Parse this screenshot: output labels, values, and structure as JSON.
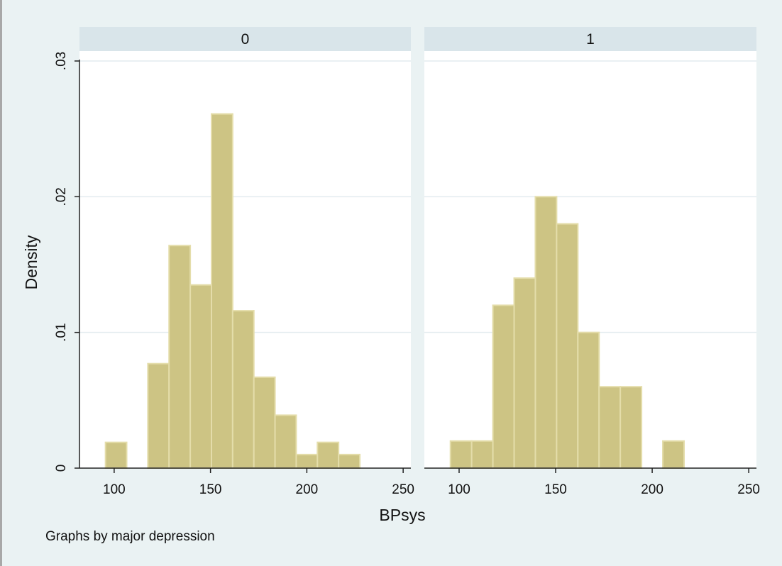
{
  "chart_data": {
    "type": "bar",
    "subtype": "histogram",
    "by_note": "Graphs by major depression",
    "xlabel": "BPsys",
    "ylabel": "Density",
    "x_ticks": [
      100,
      150,
      200,
      250
    ],
    "x_tick_labels": [
      "100",
      "150",
      "200",
      "250"
    ],
    "y_ticks": [
      0,
      0.01,
      0.02,
      0.03
    ],
    "y_tick_labels": [
      "0",
      ".01",
      ".02",
      ".03"
    ],
    "xlim": [
      82,
      254
    ],
    "ylim": [
      0,
      0.03
    ],
    "grid": true,
    "colors": {
      "background": "#eaf2f3",
      "plot_area": "#ffffff",
      "strip": "#d9e5ea",
      "bar_fill": "#cdc484",
      "bar_edge": "#e4ddaa",
      "gridline": "#e3ecef",
      "axis": "#222222"
    },
    "panels": [
      {
        "label": "0",
        "bins": [
          {
            "x0": 95.5,
            "x1": 106.5,
            "density": 0.0019
          },
          {
            "x0": 117.5,
            "x1": 128.5,
            "density": 0.0077
          },
          {
            "x0": 128.5,
            "x1": 139.5,
            "density": 0.0164
          },
          {
            "x0": 139.5,
            "x1": 150.5,
            "density": 0.0135
          },
          {
            "x0": 150.5,
            "x1": 161.5,
            "density": 0.0261
          },
          {
            "x0": 161.5,
            "x1": 172.5,
            "density": 0.0116
          },
          {
            "x0": 172.5,
            "x1": 183.5,
            "density": 0.0067
          },
          {
            "x0": 183.5,
            "x1": 194.5,
            "density": 0.0039
          },
          {
            "x0": 194.5,
            "x1": 205.5,
            "density": 0.001
          },
          {
            "x0": 205.5,
            "x1": 216.5,
            "density": 0.0019
          },
          {
            "x0": 216.5,
            "x1": 227.5,
            "density": 0.001
          }
        ]
      },
      {
        "label": "1",
        "bins": [
          {
            "x0": 95.5,
            "x1": 106.5,
            "density": 0.002
          },
          {
            "x0": 106.5,
            "x1": 117.5,
            "density": 0.002
          },
          {
            "x0": 117.5,
            "x1": 128.5,
            "density": 0.012
          },
          {
            "x0": 128.5,
            "x1": 139.5,
            "density": 0.014
          },
          {
            "x0": 139.5,
            "x1": 150.5,
            "density": 0.02
          },
          {
            "x0": 150.5,
            "x1": 161.5,
            "density": 0.018
          },
          {
            "x0": 161.5,
            "x1": 172.5,
            "density": 0.01
          },
          {
            "x0": 172.5,
            "x1": 183.5,
            "density": 0.006
          },
          {
            "x0": 183.5,
            "x1": 194.5,
            "density": 0.006
          },
          {
            "x0": 205.5,
            "x1": 216.5,
            "density": 0.002
          }
        ]
      }
    ]
  }
}
